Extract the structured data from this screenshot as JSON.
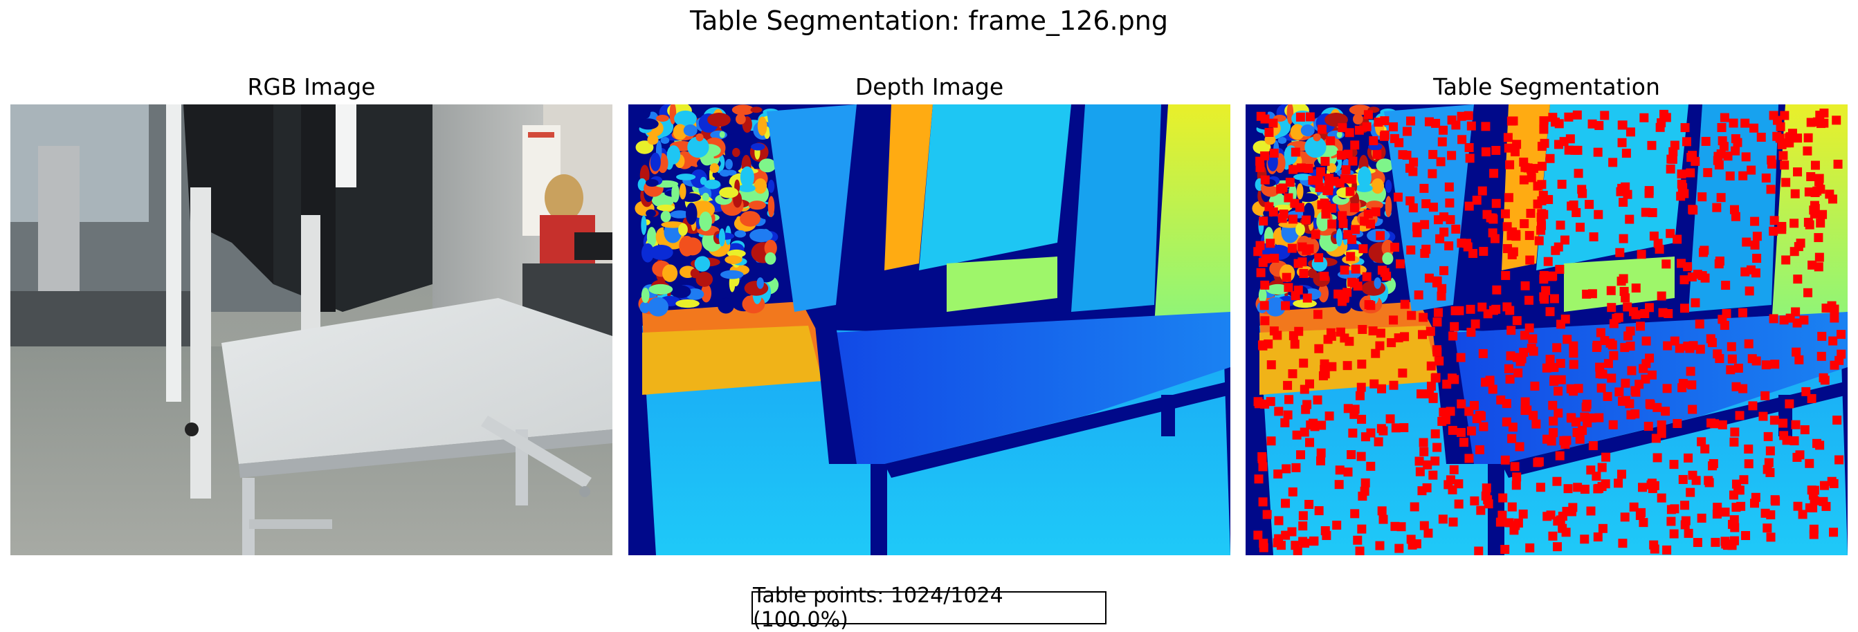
{
  "figure_title": "Table Segmentation: frame_126.png",
  "panels": [
    {
      "title": "RGB Image"
    },
    {
      "title": "Depth Image"
    },
    {
      "title": "Table Segmentation"
    }
  ],
  "stats_text": "Table points: 1024/1024 (100.0%)",
  "colors": {
    "point_marker": "#ff0000",
    "colormap": "jet"
  }
}
